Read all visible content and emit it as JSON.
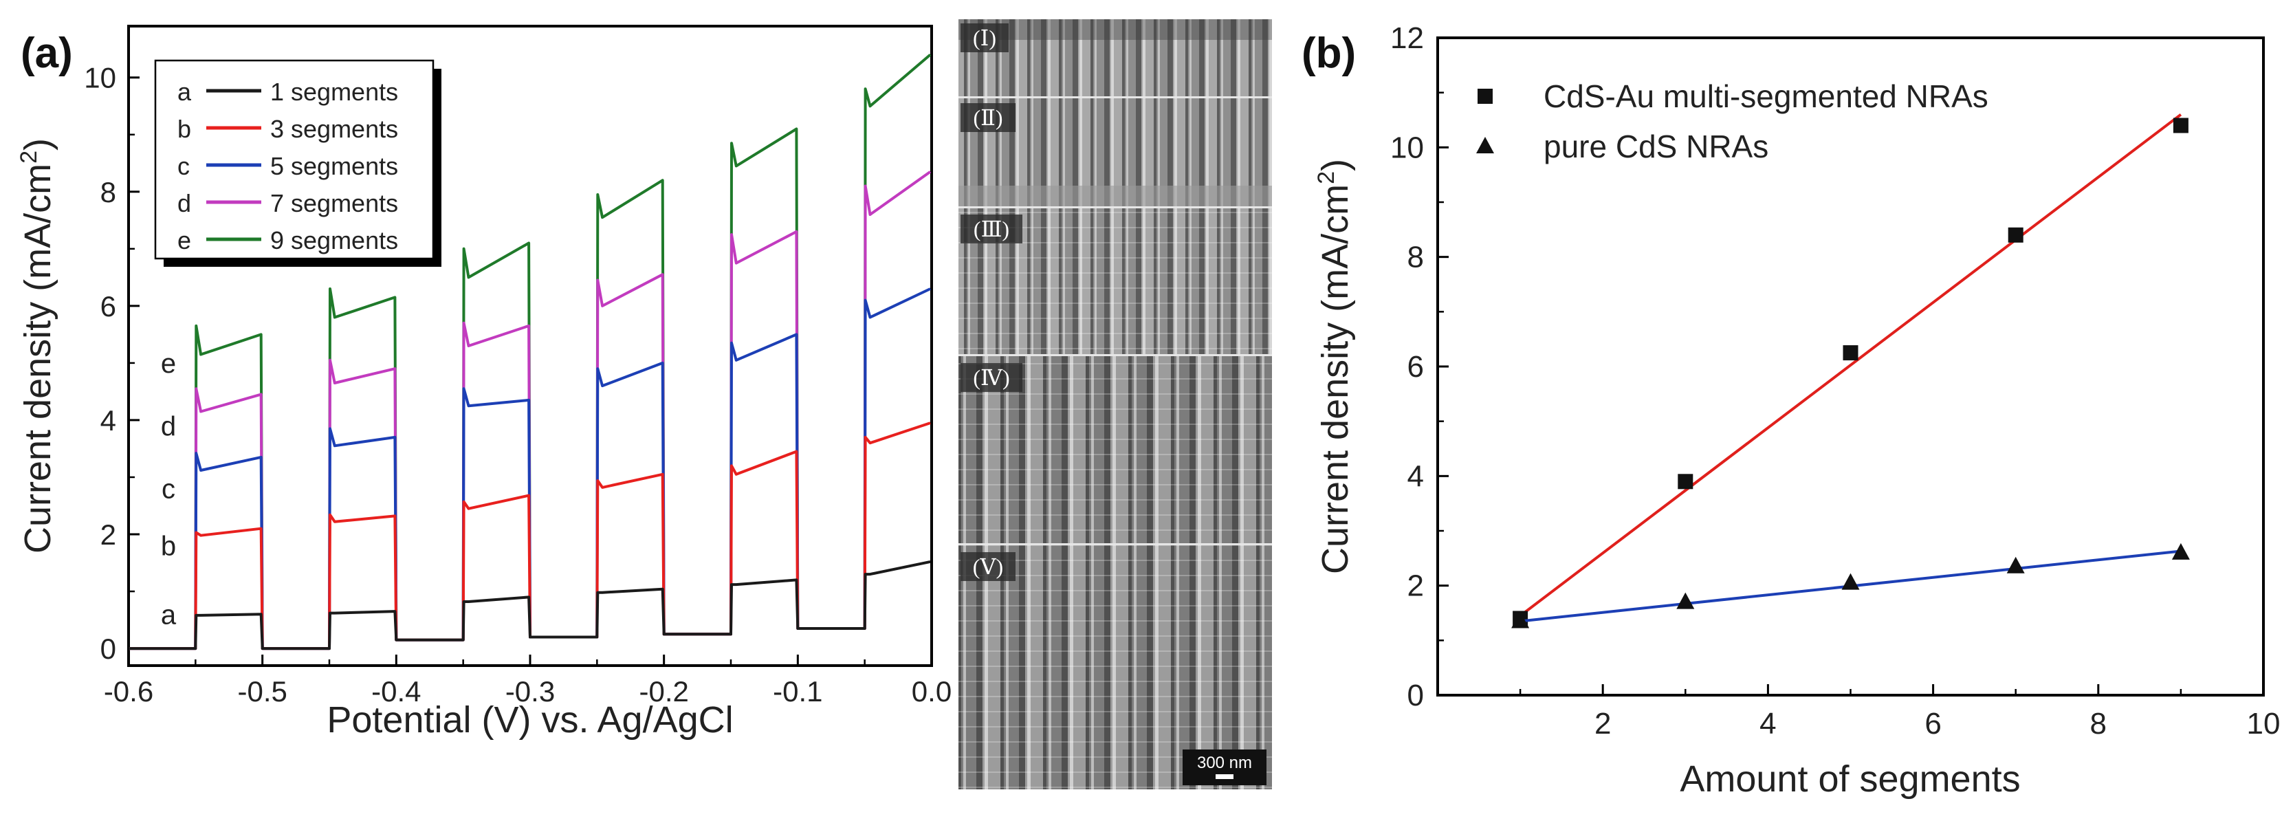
{
  "chart_data": [
    {
      "type": "line",
      "panel_label": "(a)",
      "xlabel": "Potential (V) vs. Ag/AgCl",
      "ylabel_main": "Current density (mA/cm",
      "ylabel_sup": "2",
      "ylabel_close": ")",
      "xlim": [
        -0.6,
        0.0
      ],
      "ylim": [
        -0.3,
        10.9
      ],
      "xticks": [
        -0.6,
        -0.5,
        -0.4,
        -0.3,
        -0.2,
        -0.1,
        0.0
      ],
      "xtick_labels": [
        "-0.6",
        "-0.5",
        "-0.4",
        "-0.3",
        "-0.2",
        "-0.1",
        "0.0"
      ],
      "yticks": [
        0,
        2,
        4,
        6,
        8,
        10
      ],
      "ytick_labels": [
        "0",
        "2",
        "4",
        "6",
        "8",
        "10"
      ],
      "light_on_intervals": [
        [
          -0.55,
          -0.5
        ],
        [
          -0.45,
          -0.4
        ],
        [
          -0.35,
          -0.3
        ],
        [
          -0.25,
          -0.2
        ],
        [
          -0.15,
          -0.1
        ],
        [
          -0.05,
          0.0
        ]
      ],
      "dark_current": [
        0,
        0,
        0.15,
        0.2,
        0.25,
        0.35
      ],
      "series": [
        {
          "letter": "a",
          "name": "1 segments",
          "color": "#1a1a1a",
          "on_start": [
            0.58,
            0.62,
            0.82,
            0.98,
            1.12,
            1.3
          ],
          "on_end": [
            0.6,
            0.65,
            0.9,
            1.04,
            1.2,
            1.52
          ],
          "spike": [
            0,
            0,
            0,
            0,
            0,
            0
          ]
        },
        {
          "letter": "b",
          "name": "3 segments",
          "color": "#e8201e",
          "on_start": [
            1.98,
            2.22,
            2.45,
            2.82,
            3.05,
            3.6
          ],
          "on_end": [
            2.1,
            2.32,
            2.68,
            3.05,
            3.45,
            3.95
          ],
          "spike": [
            0.05,
            0.12,
            0.12,
            0.12,
            0.15,
            0.1
          ]
        },
        {
          "letter": "c",
          "name": "5 segments",
          "color": "#1c3fb5",
          "on_start": [
            3.12,
            3.55,
            4.25,
            4.6,
            5.05,
            5.8
          ],
          "on_end": [
            3.35,
            3.7,
            4.35,
            5.0,
            5.5,
            6.3
          ],
          "spike": [
            0.3,
            0.3,
            0.3,
            0.3,
            0.3,
            0.3
          ]
        },
        {
          "letter": "d",
          "name": "7 segments",
          "color": "#c23bbf",
          "on_start": [
            4.15,
            4.65,
            5.3,
            6.0,
            6.75,
            7.6
          ],
          "on_end": [
            4.45,
            4.9,
            5.65,
            6.55,
            7.3,
            8.35
          ],
          "spike": [
            0.4,
            0.4,
            0.4,
            0.45,
            0.5,
            0.5
          ]
        },
        {
          "letter": "e",
          "name": "9 segments",
          "color": "#1f7a2a",
          "on_start": [
            5.15,
            5.8,
            6.5,
            7.55,
            8.45,
            9.5
          ],
          "on_end": [
            5.5,
            6.15,
            7.1,
            8.2,
            9.1,
            10.4
          ],
          "spike": [
            0.5,
            0.5,
            0.5,
            0.4,
            0.4,
            0.3
          ]
        }
      ],
      "curve_side_labels": [
        "e",
        "d",
        "c",
        "b",
        "a"
      ]
    },
    {
      "type": "scatter",
      "panel_label": "(b)",
      "xlabel": "Amount of segments",
      "ylabel_main": "Current density (mA/cm",
      "ylabel_sup": "2",
      "ylabel_close": ")",
      "xlim": [
        0,
        10
      ],
      "ylim": [
        0,
        12
      ],
      "xticks": [
        2,
        4,
        6,
        8,
        10
      ],
      "xtick_labels": [
        "2",
        "4",
        "6",
        "8",
        "10"
      ],
      "yticks": [
        0,
        2,
        4,
        6,
        8,
        10,
        12
      ],
      "ytick_labels": [
        "0",
        "2",
        "4",
        "6",
        "8",
        "10",
        "12"
      ],
      "series": [
        {
          "name": "CdS-Au multi-segmented NRAs",
          "marker": "square",
          "marker_color": "#111111",
          "fit_color": "#e0201c",
          "x": [
            1,
            3,
            5,
            7,
            9
          ],
          "y": [
            1.4,
            3.9,
            6.25,
            8.4,
            10.4
          ],
          "fit": [
            [
              1,
              1.45
            ],
            [
              9,
              10.6
            ]
          ]
        },
        {
          "name": "pure CdS NRAs",
          "marker": "triangle",
          "marker_color": "#111111",
          "fit_color": "#1c3fb5",
          "x": [
            1,
            3,
            5,
            7,
            9
          ],
          "y": [
            1.35,
            1.7,
            2.05,
            2.35,
            2.6
          ],
          "fit": [
            [
              1,
              1.35
            ],
            [
              9,
              2.63
            ]
          ]
        }
      ]
    }
  ],
  "sem_images": {
    "panel_labels": [
      "(Ⅰ)",
      "(Ⅱ)",
      "(Ⅲ)",
      "(Ⅳ)",
      "(Ⅴ)"
    ],
    "scale_bar": "300 nm"
  },
  "colors": {
    "axis": "#000000",
    "sem_bg": "#6e6e6e",
    "sem_highlight": "#d8d8d8"
  }
}
